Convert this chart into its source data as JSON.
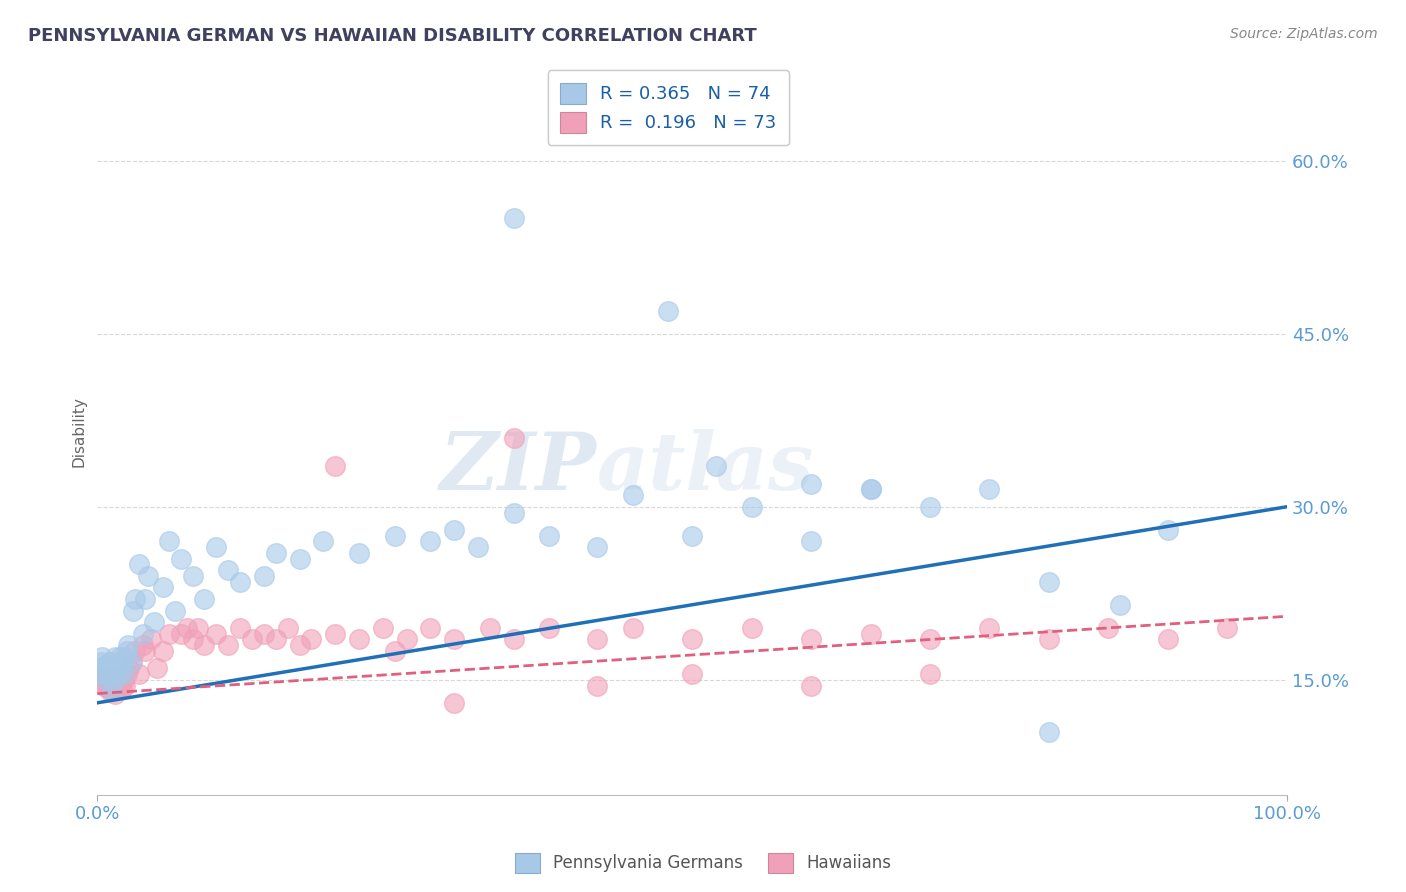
{
  "title": "PENNSYLVANIA GERMAN VS HAWAIIAN DISABILITY CORRELATION CHART",
  "source": "Source: ZipAtlas.com",
  "ylabel_label": "Disability",
  "legend_labels": [
    "Pennsylvania Germans",
    "Hawaiians"
  ],
  "r_blue": 0.365,
  "n_blue": 74,
  "r_pink": 0.196,
  "n_pink": 73,
  "blue_color": "#a8c8e8",
  "pink_color": "#f0a0b8",
  "title_color": "#404060",
  "axis_tick_color": "#5b9bd5",
  "line_blue_color": "#2070b8",
  "line_pink_color": "#e06080",
  "grid_color": "#d8d8d8",
  "xlim": [
    0.0,
    1.0
  ],
  "ylim": [
    0.05,
    0.68
  ],
  "yticks": [
    0.15,
    0.3,
    0.45,
    0.6
  ],
  "ytick_labels": [
    "15.0%",
    "30.0%",
    "45.0%",
    "60.0%"
  ],
  "xtick_labels": [
    "0.0%",
    "100.0%"
  ],
  "blue_line_start": 0.13,
  "blue_line_end": 0.3,
  "pink_line_start": 0.138,
  "pink_line_end": 0.205,
  "blue_scatter_x": [
    0.003,
    0.004,
    0.005,
    0.005,
    0.006,
    0.007,
    0.007,
    0.008,
    0.008,
    0.009,
    0.01,
    0.01,
    0.011,
    0.012,
    0.012,
    0.013,
    0.014,
    0.015,
    0.015,
    0.016,
    0.017,
    0.018,
    0.019,
    0.02,
    0.021,
    0.022,
    0.023,
    0.025,
    0.026,
    0.028,
    0.03,
    0.032,
    0.035,
    0.038,
    0.04,
    0.043,
    0.048,
    0.055,
    0.06,
    0.065,
    0.07,
    0.08,
    0.09,
    0.1,
    0.11,
    0.12,
    0.14,
    0.15,
    0.17,
    0.19,
    0.22,
    0.25,
    0.28,
    0.3,
    0.32,
    0.35,
    0.38,
    0.42,
    0.45,
    0.5,
    0.55,
    0.6,
    0.65,
    0.7,
    0.75,
    0.8,
    0.86,
    0.9,
    0.35,
    0.48,
    0.52,
    0.6,
    0.65,
    0.8
  ],
  "blue_scatter_y": [
    0.165,
    0.17,
    0.155,
    0.16,
    0.162,
    0.15,
    0.16,
    0.157,
    0.163,
    0.155,
    0.16,
    0.155,
    0.165,
    0.14,
    0.16,
    0.155,
    0.16,
    0.15,
    0.17,
    0.16,
    0.165,
    0.155,
    0.17,
    0.16,
    0.165,
    0.155,
    0.17,
    0.175,
    0.18,
    0.165,
    0.21,
    0.22,
    0.25,
    0.19,
    0.22,
    0.24,
    0.2,
    0.23,
    0.27,
    0.21,
    0.255,
    0.24,
    0.22,
    0.265,
    0.245,
    0.235,
    0.24,
    0.26,
    0.255,
    0.27,
    0.26,
    0.275,
    0.27,
    0.28,
    0.265,
    0.295,
    0.275,
    0.265,
    0.31,
    0.275,
    0.3,
    0.32,
    0.315,
    0.3,
    0.315,
    0.235,
    0.215,
    0.28,
    0.55,
    0.47,
    0.335,
    0.27,
    0.315,
    0.105
  ],
  "pink_scatter_x": [
    0.003,
    0.005,
    0.006,
    0.007,
    0.008,
    0.009,
    0.01,
    0.011,
    0.012,
    0.013,
    0.015,
    0.016,
    0.017,
    0.018,
    0.019,
    0.02,
    0.021,
    0.022,
    0.023,
    0.025,
    0.027,
    0.029,
    0.032,
    0.035,
    0.038,
    0.04,
    0.045,
    0.05,
    0.055,
    0.06,
    0.07,
    0.075,
    0.08,
    0.085,
    0.09,
    0.1,
    0.11,
    0.12,
    0.13,
    0.14,
    0.15,
    0.16,
    0.17,
    0.18,
    0.2,
    0.22,
    0.24,
    0.26,
    0.28,
    0.3,
    0.33,
    0.35,
    0.38,
    0.42,
    0.45,
    0.5,
    0.55,
    0.6,
    0.65,
    0.7,
    0.75,
    0.8,
    0.85,
    0.9,
    0.95,
    0.2,
    0.25,
    0.3,
    0.35,
    0.42,
    0.5,
    0.6,
    0.7
  ],
  "pink_scatter_y": [
    0.148,
    0.152,
    0.145,
    0.15,
    0.147,
    0.143,
    0.148,
    0.14,
    0.145,
    0.15,
    0.138,
    0.143,
    0.148,
    0.142,
    0.145,
    0.148,
    0.142,
    0.15,
    0.145,
    0.155,
    0.16,
    0.165,
    0.175,
    0.155,
    0.18,
    0.175,
    0.185,
    0.16,
    0.175,
    0.19,
    0.19,
    0.195,
    0.185,
    0.195,
    0.18,
    0.19,
    0.18,
    0.195,
    0.185,
    0.19,
    0.185,
    0.195,
    0.18,
    0.185,
    0.19,
    0.185,
    0.195,
    0.185,
    0.195,
    0.185,
    0.195,
    0.185,
    0.195,
    0.185,
    0.195,
    0.185,
    0.195,
    0.185,
    0.19,
    0.185,
    0.195,
    0.185,
    0.195,
    0.185,
    0.195,
    0.335,
    0.175,
    0.13,
    0.36,
    0.145,
    0.155,
    0.145,
    0.155
  ]
}
